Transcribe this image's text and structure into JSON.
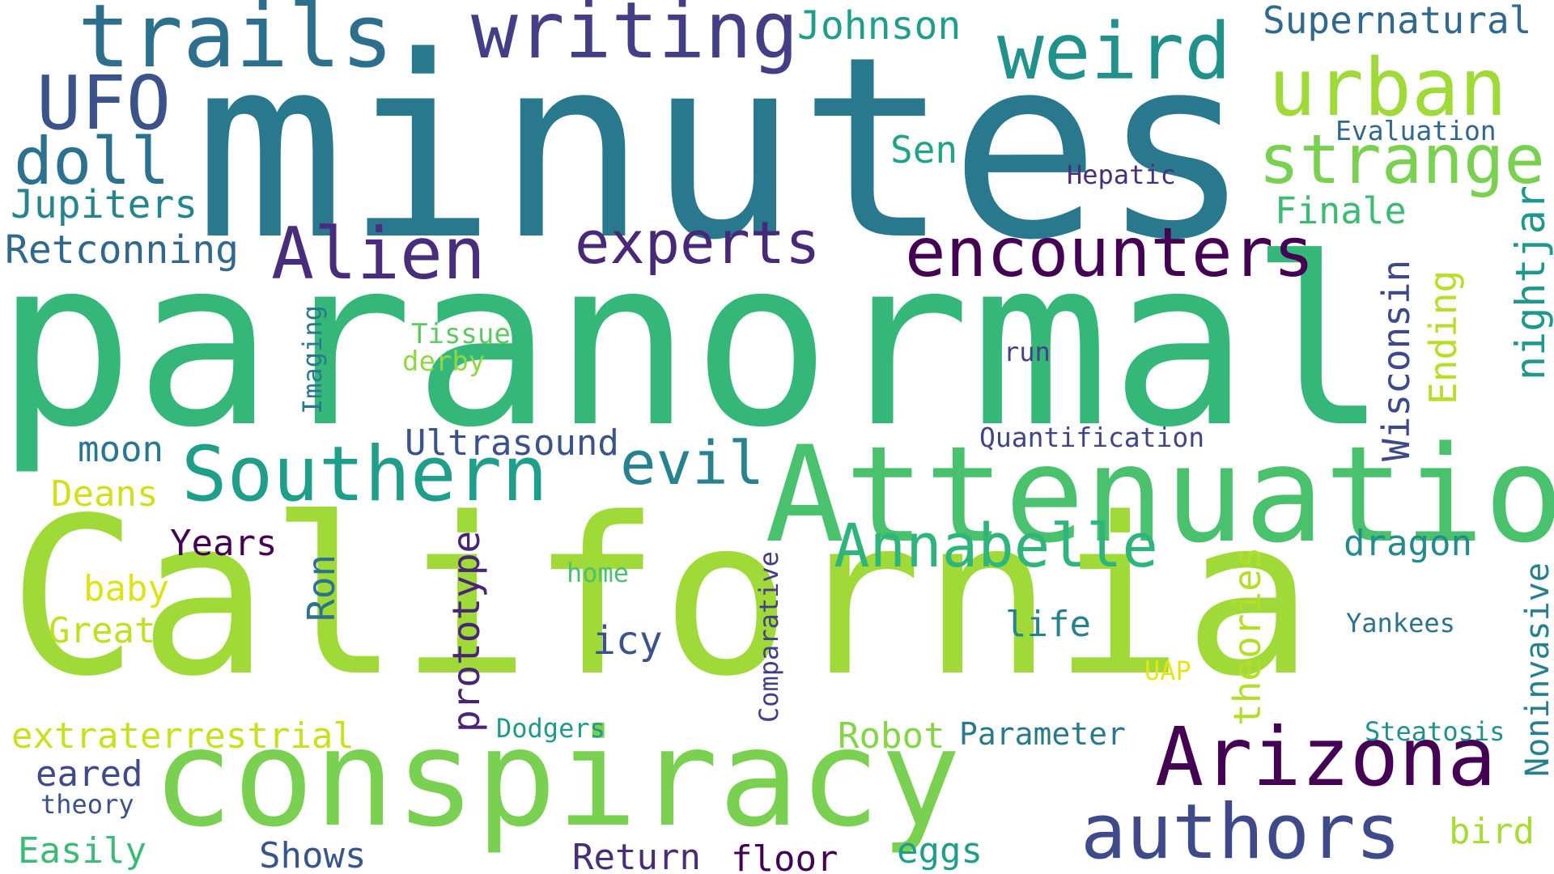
{
  "words": [
    {
      "id": "minutes",
      "text": "minutes",
      "color": "#2a788e"
    },
    {
      "id": "paranormal",
      "text": "paranormal",
      "color": "#35b779"
    },
    {
      "id": "california",
      "text": "California",
      "color": "#a0da39"
    },
    {
      "id": "conspiracy",
      "text": "conspiracy",
      "color": "#7ad151"
    },
    {
      "id": "attenuation",
      "text": "Attenuation",
      "color": "#4ac16d"
    },
    {
      "id": "trails",
      "text": "trails",
      "color": "#2d708e"
    },
    {
      "id": "writing",
      "text": "writing",
      "color": "#433e85"
    },
    {
      "id": "weird",
      "text": "weird",
      "color": "#21918c"
    },
    {
      "id": "urban",
      "text": "urban",
      "color": "#a0da39"
    },
    {
      "id": "strange",
      "text": "strange",
      "color": "#7ad151"
    },
    {
      "id": "ufo",
      "text": "UFO",
      "color": "#3b528b"
    },
    {
      "id": "doll",
      "text": "doll",
      "color": "#2c728e"
    },
    {
      "id": "alien",
      "text": "Alien",
      "color": "#472d7b"
    },
    {
      "id": "experts",
      "text": "experts",
      "color": "#482878"
    },
    {
      "id": "encounters",
      "text": "encounters",
      "color": "#440154"
    },
    {
      "id": "southern",
      "text": "Southern",
      "color": "#1f9e89"
    },
    {
      "id": "evil",
      "text": "evil",
      "color": "#26828e"
    },
    {
      "id": "annabelle",
      "text": "Annabelle",
      "color": "#2fb47c"
    },
    {
      "id": "arizona",
      "text": "Arizona",
      "color": "#440154"
    },
    {
      "id": "authors",
      "text": "authors",
      "color": "#3e4a89"
    },
    {
      "id": "johnson",
      "text": "Johnson",
      "color": "#1f9e89"
    },
    {
      "id": "supernatural",
      "text": "Supernatural",
      "color": "#31688e"
    },
    {
      "id": "evaluation",
      "text": "Evaluation",
      "color": "#31688e"
    },
    {
      "id": "sen",
      "text": "Sen",
      "color": "#20a486"
    },
    {
      "id": "hepatic",
      "text": "Hepatic",
      "color": "#46307e"
    },
    {
      "id": "finale",
      "text": "Finale",
      "color": "#3bbb75"
    },
    {
      "id": "jupiters",
      "text": "Jupiters",
      "color": "#25858e"
    },
    {
      "id": "retconning",
      "text": "Retconning",
      "color": "#31688e"
    },
    {
      "id": "nightjar",
      "text": "nightjar",
      "color": "#1f988b"
    },
    {
      "id": "wisconsin",
      "text": "Wisconsin",
      "color": "#3e4989"
    },
    {
      "id": "ending",
      "text": "Ending",
      "color": "#b8de29"
    },
    {
      "id": "imaging",
      "text": "Imaging",
      "color": "#2a788e"
    },
    {
      "id": "tissue",
      "text": "Tissue",
      "color": "#5ec962"
    },
    {
      "id": "derby",
      "text": "derby",
      "color": "#8fd744"
    },
    {
      "id": "run",
      "text": "run",
      "color": "#424086"
    },
    {
      "id": "quantification",
      "text": "Quantification",
      "color": "#414487"
    },
    {
      "id": "ultrasound",
      "text": "Ultrasound",
      "color": "#3b528b"
    },
    {
      "id": "moon",
      "text": "moon",
      "color": "#2a768e"
    },
    {
      "id": "deans",
      "text": "Deans",
      "color": "#d0e11c"
    },
    {
      "id": "years",
      "text": "Years",
      "color": "#440154"
    },
    {
      "id": "dragon",
      "text": "dragon",
      "color": "#238a8d"
    },
    {
      "id": "baby",
      "text": "baby",
      "color": "#dde318"
    },
    {
      "id": "ron",
      "text": "Ron",
      "color": "#2c728e"
    },
    {
      "id": "prototype",
      "text": "prototype",
      "color": "#482576"
    },
    {
      "id": "home",
      "text": "home",
      "color": "#4ac16d"
    },
    {
      "id": "comparative",
      "text": "Comparative",
      "color": "#433e85"
    },
    {
      "id": "theories",
      "text": "theories",
      "color": "#b5de2b"
    },
    {
      "id": "noninvasive",
      "text": "Noninvasive",
      "color": "#27808e"
    },
    {
      "id": "great",
      "text": "Great",
      "color": "#c2df23"
    },
    {
      "id": "icy",
      "text": "icy",
      "color": "#3b528b"
    },
    {
      "id": "life",
      "text": "life",
      "color": "#26828e"
    },
    {
      "id": "yankees",
      "text": "Yankees",
      "color": "#2c728e"
    },
    {
      "id": "uap",
      "text": "UAP",
      "color": "#e5e419"
    },
    {
      "id": "extraterrestrial",
      "text": "extraterrestrial",
      "color": "#c8e020"
    },
    {
      "id": "dodgers",
      "text": "Dodgers",
      "color": "#1f9a8a"
    },
    {
      "id": "robot",
      "text": "Robot",
      "color": "#86d549"
    },
    {
      "id": "parameter",
      "text": "Parameter",
      "color": "#2a788e"
    },
    {
      "id": "steatosis",
      "text": "Steatosis",
      "color": "#21918c"
    },
    {
      "id": "eared",
      "text": "eared",
      "color": "#3e4a89"
    },
    {
      "id": "theory",
      "text": "theory",
      "color": "#3b528b"
    },
    {
      "id": "easily",
      "text": "Easily",
      "color": "#3bbb75"
    },
    {
      "id": "shows",
      "text": "Shows",
      "color": "#39568c"
    },
    {
      "id": "return",
      "text": "Return",
      "color": "#472d7b"
    },
    {
      "id": "floor",
      "text": "floor",
      "color": "#440154"
    },
    {
      "id": "eggs",
      "text": "eggs",
      "color": "#1f9e89"
    },
    {
      "id": "bird",
      "text": "bird",
      "color": "#a8db34"
    }
  ]
}
